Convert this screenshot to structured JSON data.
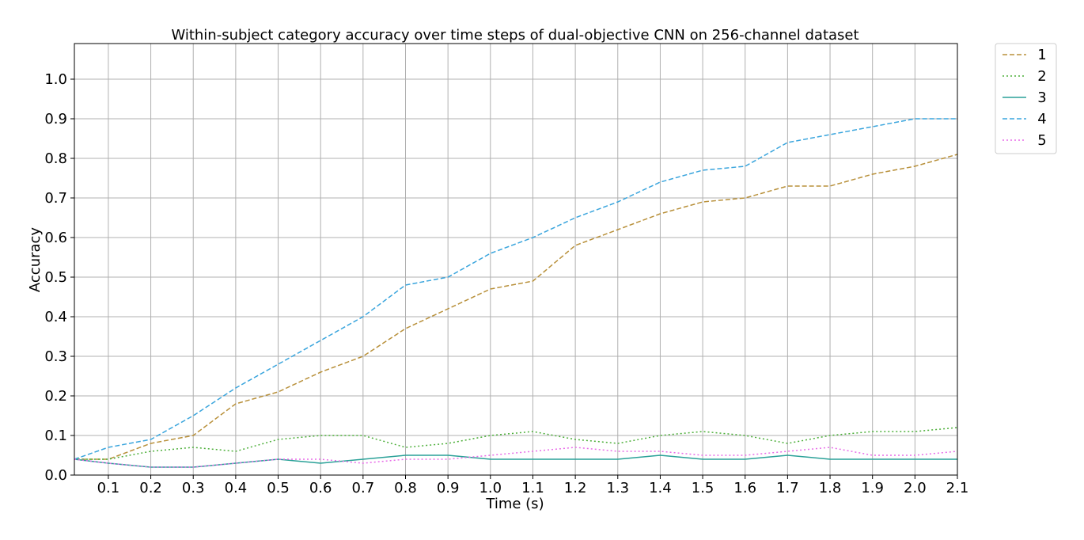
{
  "chart_data": {
    "type": "line",
    "title": "Within-subject category accuracy over time steps of dual-objective CNN on 256-channel dataset",
    "xlabel": "Time (s)",
    "ylabel": "Accuracy",
    "xlim": [
      0.02,
      2.1
    ],
    "ylim": [
      0.0,
      1.09
    ],
    "grid": true,
    "legend_position": "outside-top-right",
    "x_ticks": [
      0.1,
      0.2,
      0.3,
      0.4,
      0.5,
      0.6,
      0.7,
      0.8,
      0.9,
      1.0,
      1.1,
      1.2,
      1.3,
      1.4,
      1.5,
      1.6,
      1.7,
      1.8,
      1.9,
      2.0,
      2.1
    ],
    "x_tick_labels": [
      "0.1",
      "0.2",
      "0.3",
      "0.4",
      "0.5",
      "0.6",
      "0.7",
      "0.8",
      "0.9",
      "1.0",
      "1.1",
      "1.2",
      "1.3",
      "1.4",
      "1.5",
      "1.6",
      "1.7",
      "1.8",
      "1.9",
      "2.0",
      "2.1"
    ],
    "y_ticks": [
      0.0,
      0.1,
      0.2,
      0.3,
      0.4,
      0.5,
      0.6,
      0.7,
      0.8,
      0.9,
      1.0
    ],
    "y_tick_labels": [
      "0.0",
      "0.1",
      "0.2",
      "0.3",
      "0.4",
      "0.5",
      "0.6",
      "0.7",
      "0.8",
      "0.9",
      "1.0"
    ],
    "x": [
      0.02,
      0.1,
      0.2,
      0.3,
      0.4,
      0.5,
      0.6,
      0.7,
      0.8,
      0.9,
      1.0,
      1.1,
      1.2,
      1.3,
      1.4,
      1.5,
      1.6,
      1.7,
      1.8,
      1.9,
      2.0,
      2.1
    ],
    "series": [
      {
        "name": "1",
        "color": "#b8903a",
        "dash": "6,3",
        "values": [
          0.04,
          0.04,
          0.08,
          0.1,
          0.18,
          0.21,
          0.26,
          0.3,
          0.37,
          0.42,
          0.47,
          0.49,
          0.58,
          0.62,
          0.66,
          0.69,
          0.7,
          0.73,
          0.73,
          0.76,
          0.78,
          0.81
        ]
      },
      {
        "name": "2",
        "color": "#4daf3a",
        "dash": "2,3",
        "values": [
          0.04,
          0.04,
          0.06,
          0.07,
          0.06,
          0.09,
          0.1,
          0.1,
          0.07,
          0.08,
          0.1,
          0.11,
          0.09,
          0.08,
          0.1,
          0.11,
          0.1,
          0.08,
          0.1,
          0.11,
          0.11,
          0.12
        ]
      },
      {
        "name": "3",
        "color": "#2aa198",
        "dash": "",
        "values": [
          0.04,
          0.03,
          0.02,
          0.02,
          0.03,
          0.04,
          0.03,
          0.04,
          0.05,
          0.05,
          0.04,
          0.04,
          0.04,
          0.04,
          0.05,
          0.04,
          0.04,
          0.05,
          0.04,
          0.04,
          0.04,
          0.04
        ]
      },
      {
        "name": "4",
        "color": "#3aa5dd",
        "dash": "6,3",
        "values": [
          0.04,
          0.07,
          0.09,
          0.15,
          0.22,
          0.28,
          0.34,
          0.4,
          0.48,
          0.5,
          0.56,
          0.6,
          0.65,
          0.69,
          0.74,
          0.77,
          0.78,
          0.84,
          0.86,
          0.88,
          0.9,
          0.9
        ]
      },
      {
        "name": "5",
        "color": "#e86ce8",
        "dash": "2,3",
        "values": [
          0.04,
          0.03,
          0.02,
          0.02,
          0.03,
          0.04,
          0.04,
          0.03,
          0.04,
          0.04,
          0.05,
          0.06,
          0.07,
          0.06,
          0.06,
          0.05,
          0.05,
          0.06,
          0.07,
          0.05,
          0.05,
          0.06
        ]
      }
    ]
  }
}
